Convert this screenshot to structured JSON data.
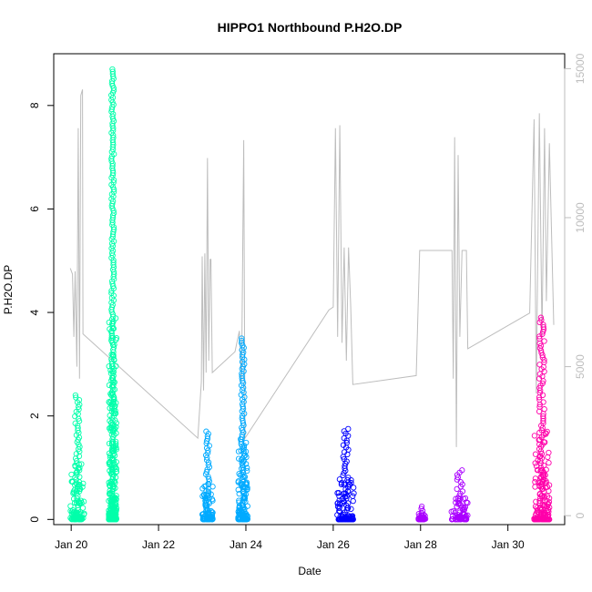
{
  "chart_data": {
    "type": "scatter",
    "title": "HIPPO1 Northbound P.H2O.DP",
    "xlabel": "Date",
    "ylabel": "P.H2O.DP",
    "x_tick_labels": [
      "Jan 20",
      "Jan 22",
      "Jan 24",
      "Jan 26",
      "Jan 28",
      "Jan 30"
    ],
    "x_tick_values": [
      20,
      22,
      24,
      26,
      28,
      30
    ],
    "xlim": [
      19.6,
      31.3
    ],
    "ylim": [
      -0.1,
      9.0
    ],
    "y_ticks": [
      "0",
      "2",
      "4",
      "6",
      "8"
    ],
    "y_tick_values": [
      0,
      2,
      4,
      6,
      8
    ],
    "y2lim": [
      -300,
      15500
    ],
    "y2_ticks": [
      "0",
      "5000",
      "10000",
      "15000"
    ],
    "y2_tick_values": [
      0,
      5000,
      10000,
      15000
    ],
    "grid": false,
    "colors": {
      "flight1": "#00ffaa",
      "flight2": "#00aaff",
      "flight3": "#0000ff",
      "flight4": "#aa00ff",
      "flight5": "#ff00aa",
      "altitude_line": "#bdbdbd"
    },
    "series": [
      {
        "color_key": "flight1",
        "segments": [
          {
            "x0": 19.98,
            "x1": 20.3,
            "ymax": 2.4
          },
          {
            "x0": 20.86,
            "x1": 21.04,
            "ymax": 8.7
          }
        ]
      },
      {
        "color_key": "flight2",
        "segments": [
          {
            "x0": 23.0,
            "x1": 23.25,
            "ymax": 1.7
          },
          {
            "x0": 23.82,
            "x1": 24.04,
            "ymax": 3.5
          }
        ]
      },
      {
        "color_key": "flight3",
        "segments": [
          {
            "x0": 26.08,
            "x1": 26.48,
            "ymax": 1.75
          }
        ]
      },
      {
        "color_key": "flight4",
        "segments": [
          {
            "x0": 27.95,
            "x1": 28.12,
            "ymax": 0.25
          },
          {
            "x0": 28.7,
            "x1": 29.1,
            "ymax": 0.95
          }
        ]
      },
      {
        "color_key": "flight5",
        "segments": [
          {
            "x0": 30.6,
            "x1": 30.95,
            "ymax": 3.9
          }
        ]
      }
    ],
    "altitude_line": [
      [
        19.98,
        8300
      ],
      [
        20.03,
        8100
      ],
      [
        20.06,
        6000
      ],
      [
        20.09,
        8200
      ],
      [
        20.13,
        5000
      ],
      [
        20.16,
        13000
      ],
      [
        20.19,
        4600
      ],
      [
        20.22,
        14100
      ],
      [
        20.26,
        14300
      ],
      [
        20.27,
        6100
      ],
      [
        22.9,
        2600
      ],
      [
        22.98,
        4500
      ],
      [
        23.0,
        8700
      ],
      [
        23.03,
        4200
      ],
      [
        23.06,
        8800
      ],
      [
        23.09,
        4800
      ],
      [
        23.12,
        12000
      ],
      [
        23.15,
        5200
      ],
      [
        23.18,
        8600
      ],
      [
        23.2,
        8600
      ],
      [
        23.23,
        4800
      ],
      [
        23.75,
        5500
      ],
      [
        23.85,
        6200
      ],
      [
        23.9,
        4500
      ],
      [
        23.95,
        12600
      ],
      [
        23.98,
        2600
      ],
      [
        25.9,
        6900
      ],
      [
        26.0,
        7000
      ],
      [
        26.05,
        13000
      ],
      [
        26.1,
        6000
      ],
      [
        26.15,
        13100
      ],
      [
        26.2,
        5800
      ],
      [
        26.25,
        9000
      ],
      [
        26.3,
        5200
      ],
      [
        26.35,
        9000
      ],
      [
        26.4,
        7000
      ],
      [
        26.45,
        4400
      ],
      [
        27.9,
        4700
      ],
      [
        27.98,
        8900
      ],
      [
        28.72,
        8900
      ],
      [
        28.75,
        4600
      ],
      [
        28.78,
        12700
      ],
      [
        28.82,
        2300
      ],
      [
        28.86,
        12100
      ],
      [
        28.9,
        6000
      ],
      [
        28.95,
        8900
      ],
      [
        29.05,
        8900
      ],
      [
        29.08,
        5600
      ],
      [
        30.5,
        6800
      ],
      [
        30.6,
        13300
      ],
      [
        30.65,
        4100
      ],
      [
        30.72,
        13500
      ],
      [
        30.78,
        6000
      ],
      [
        30.84,
        13000
      ],
      [
        30.88,
        7200
      ],
      [
        30.95,
        12500
      ],
      [
        31.05,
        6400
      ]
    ]
  }
}
